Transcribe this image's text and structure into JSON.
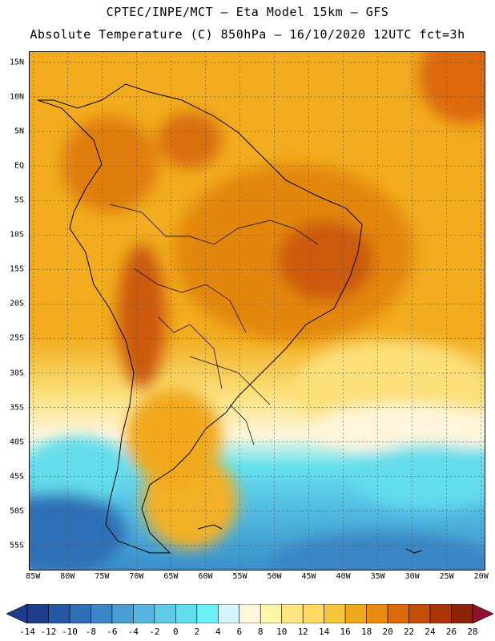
{
  "header": {
    "line1": "CPTEC/INPE/MCT –  Eta Model 15km – GFS",
    "line2": "Absolute Temperature (C) 850hPa – 16/10/2020 12UTC fct=3h"
  },
  "map": {
    "region": "South America",
    "variable": "Absolute Temperature (C) 850hPa",
    "lat_labels": [
      "15N",
      "10N",
      "5N",
      "EQ",
      "5S",
      "10S",
      "15S",
      "20S",
      "25S",
      "30S",
      "35S",
      "40S",
      "45S",
      "50S",
      "55S"
    ],
    "lat_values": [
      15,
      10,
      5,
      0,
      -5,
      -10,
      -15,
      -20,
      -25,
      -30,
      -35,
      -40,
      -45,
      -50,
      -55
    ],
    "lon_labels": [
      "85W",
      "80W",
      "75W",
      "70W",
      "65W",
      "60W",
      "55W",
      "50W",
      "45W",
      "40W",
      "35W",
      "30W",
      "25W",
      "20W"
    ],
    "lon_values": [
      -85,
      -80,
      -75,
      -70,
      -65,
      -60,
      -55,
      -50,
      -45,
      -40,
      -35,
      -30,
      -25,
      -20
    ],
    "lat_range": [
      -58.5,
      16.5
    ],
    "lon_range": [
      -85.5,
      -19.5
    ]
  },
  "colorbar": {
    "labels": [
      "-14",
      "-12",
      "-10",
      "-8",
      "-6",
      "-4",
      "-2",
      "0",
      "2",
      "4",
      "6",
      "8",
      "10",
      "12",
      "14",
      "16",
      "18",
      "20",
      "22",
      "24",
      "26",
      "28"
    ],
    "colors": [
      "#1e3c8c",
      "#2657a3",
      "#2e6fb5",
      "#3a86c6",
      "#4a9ed4",
      "#57b6e0",
      "#5fcbe6",
      "#63dcec",
      "#6cf0f6",
      "#d2f4fb",
      "#fff6dc",
      "#fff4a8",
      "#ffe680",
      "#ffd964",
      "#f5c53c",
      "#f2a81c",
      "#ea8a10",
      "#dc6a08",
      "#c44e06",
      "#a83606",
      "#8c240a"
    ],
    "low_arrow_color": "#1e3c8c",
    "high_arrow_color": "#8c1230"
  }
}
